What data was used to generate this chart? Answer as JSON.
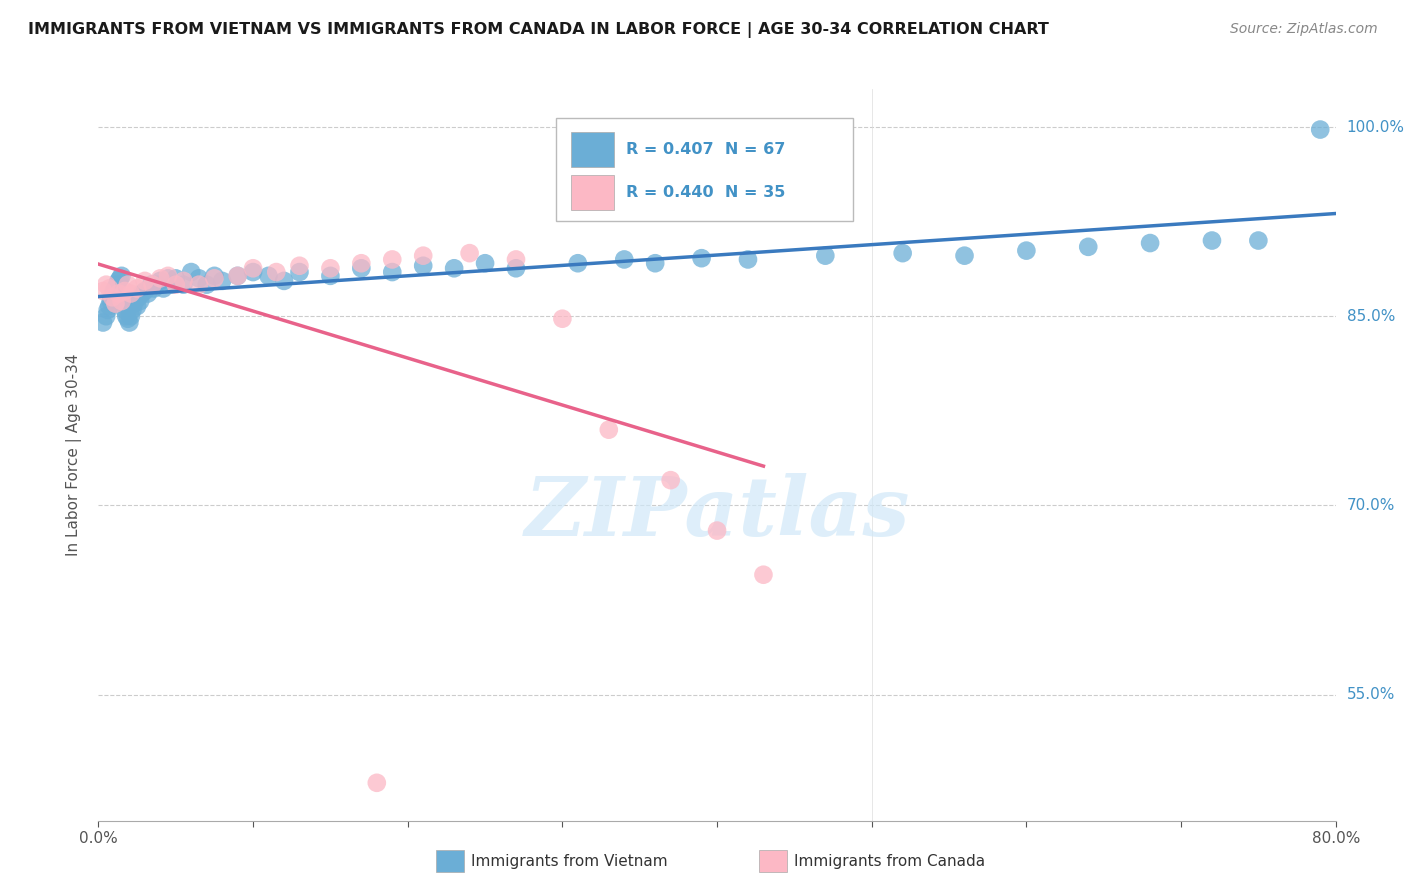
{
  "title": "IMMIGRANTS FROM VIETNAM VS IMMIGRANTS FROM CANADA IN LABOR FORCE | AGE 30-34 CORRELATION CHART",
  "source_text": "Source: ZipAtlas.com",
  "ylabel": "In Labor Force | Age 30-34",
  "xlim": [
    0.0,
    0.8
  ],
  "ylim": [
    0.45,
    1.03
  ],
  "ytick_positions": [
    0.55,
    0.7,
    0.85,
    1.0
  ],
  "ytick_labels": [
    "55.0%",
    "70.0%",
    "85.0%",
    "100.0%"
  ],
  "color_vietnam": "#6baed6",
  "color_canada": "#fcb8c5",
  "trend_color_vietnam": "#3a7abf",
  "trend_color_canada": "#e8628a",
  "legend_R_vietnam": "R = 0.407",
  "legend_N_vietnam": "N = 67",
  "legend_R_canada": "R = 0.440",
  "legend_N_canada": "N = 35",
  "watermark": "ZIPatlas",
  "watermark_color": "#d0e8f8",
  "background_color": "#ffffff",
  "vietnam_x": [
    0.003,
    0.005,
    0.006,
    0.007,
    0.008,
    0.009,
    0.01,
    0.01,
    0.011,
    0.012,
    0.013,
    0.014,
    0.015,
    0.016,
    0.017,
    0.018,
    0.019,
    0.02,
    0.021,
    0.022,
    0.023,
    0.025,
    0.026,
    0.027,
    0.028,
    0.03,
    0.032,
    0.034,
    0.036,
    0.038,
    0.04,
    0.042,
    0.045,
    0.048,
    0.05,
    0.055,
    0.06,
    0.065,
    0.07,
    0.075,
    0.08,
    0.09,
    0.1,
    0.11,
    0.12,
    0.13,
    0.15,
    0.17,
    0.19,
    0.21,
    0.23,
    0.25,
    0.27,
    0.31,
    0.34,
    0.36,
    0.39,
    0.42,
    0.47,
    0.52,
    0.56,
    0.6,
    0.64,
    0.68,
    0.72,
    0.75,
    0.79
  ],
  "vietnam_y": [
    0.845,
    0.85,
    0.855,
    0.858,
    0.862,
    0.865,
    0.868,
    0.87,
    0.872,
    0.875,
    0.878,
    0.88,
    0.882,
    0.86,
    0.855,
    0.85,
    0.848,
    0.845,
    0.85,
    0.855,
    0.86,
    0.858,
    0.865,
    0.862,
    0.868,
    0.87,
    0.868,
    0.875,
    0.872,
    0.875,
    0.878,
    0.872,
    0.88,
    0.875,
    0.88,
    0.875,
    0.885,
    0.88,
    0.875,
    0.882,
    0.878,
    0.882,
    0.885,
    0.882,
    0.878,
    0.885,
    0.882,
    0.888,
    0.885,
    0.89,
    0.888,
    0.892,
    0.888,
    0.892,
    0.895,
    0.892,
    0.896,
    0.895,
    0.898,
    0.9,
    0.898,
    0.902,
    0.905,
    0.908,
    0.91,
    0.91,
    0.998
  ],
  "canada_x": [
    0.003,
    0.005,
    0.007,
    0.009,
    0.011,
    0.013,
    0.015,
    0.017,
    0.019,
    0.021,
    0.025,
    0.03,
    0.035,
    0.04,
    0.045,
    0.05,
    0.055,
    0.065,
    0.075,
    0.09,
    0.1,
    0.115,
    0.13,
    0.15,
    0.17,
    0.19,
    0.21,
    0.24,
    0.27,
    0.3,
    0.33,
    0.37,
    0.4,
    0.43,
    0.18
  ],
  "canada_y": [
    0.87,
    0.875,
    0.872,
    0.865,
    0.86,
    0.868,
    0.862,
    0.87,
    0.875,
    0.868,
    0.872,
    0.878,
    0.875,
    0.88,
    0.882,
    0.875,
    0.878,
    0.875,
    0.88,
    0.882,
    0.888,
    0.885,
    0.89,
    0.888,
    0.892,
    0.895,
    0.898,
    0.9,
    0.895,
    0.848,
    0.76,
    0.72,
    0.68,
    0.645,
    0.48
  ]
}
